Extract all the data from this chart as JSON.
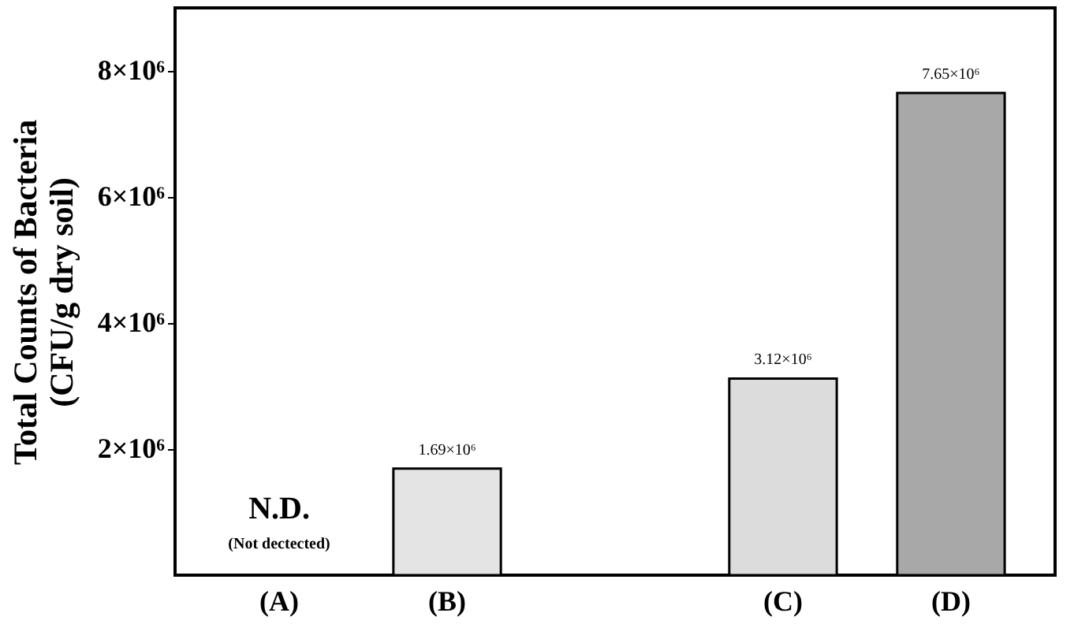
{
  "chart_data": {
    "type": "bar",
    "ylabel": "Total Counts of Bacteria\n(CFU/g dry soil)",
    "categories": [
      "(A)",
      "(B)",
      null,
      "(C)",
      "(D)"
    ],
    "values": [
      null,
      1690000,
      null,
      3120000,
      7650000
    ],
    "colors": [
      "#ffffff",
      "#e4e4e4",
      "#ffffff",
      "#dcdcdc",
      "#a8a8a8"
    ],
    "value_labels": [
      null,
      "1.69×10⁶",
      null,
      "3.12×10⁶",
      "7.65×10⁶"
    ],
    "ylim": [
      0,
      9000000
    ],
    "yticks": [
      {
        "value": 2000000,
        "label": "2×10⁶"
      },
      {
        "value": 4000000,
        "label": "4×10⁶"
      },
      {
        "value": 6000000,
        "label": "6×10⁶"
      },
      {
        "value": 8000000,
        "label": "8×10⁶"
      }
    ],
    "annotations": [
      "N.D.",
      "(Not dectected)"
    ]
  }
}
